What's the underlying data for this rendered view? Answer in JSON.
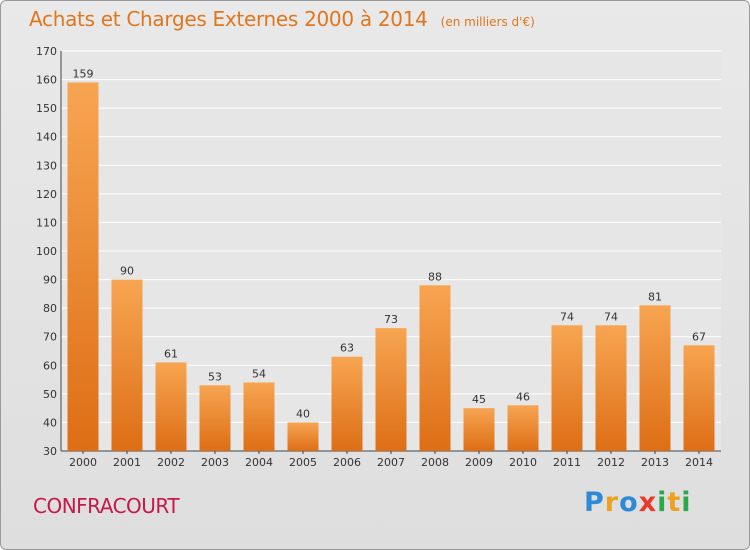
{
  "title": "Achats et Charges Externes 2000 à 2014",
  "subtitle": "(en milliers d'€)",
  "commune": "CONFRACOURT",
  "logo": {
    "letters": [
      "P",
      "r",
      "o",
      "x",
      "i",
      "t",
      "i"
    ]
  },
  "colors": {
    "bar_light": "#f7a552",
    "bar_dark": "#dd6e15",
    "title": "#e0761e",
    "commune": "#c8164e",
    "grid": "#ffffff",
    "background": "#e6e6e6"
  },
  "chart_data": {
    "type": "bar",
    "categories": [
      "2000",
      "2001",
      "2002",
      "2003",
      "2004",
      "2005",
      "2006",
      "2007",
      "2008",
      "2009",
      "2010",
      "2011",
      "2012",
      "2013",
      "2014"
    ],
    "values": [
      159,
      90,
      61,
      53,
      54,
      40,
      63,
      73,
      88,
      45,
      46,
      74,
      74,
      81,
      67
    ],
    "ylim": [
      30,
      170
    ],
    "yticks": [
      30,
      40,
      50,
      60,
      70,
      80,
      90,
      100,
      110,
      120,
      130,
      140,
      150,
      160,
      170
    ],
    "grid": true,
    "data_labels": true
  }
}
